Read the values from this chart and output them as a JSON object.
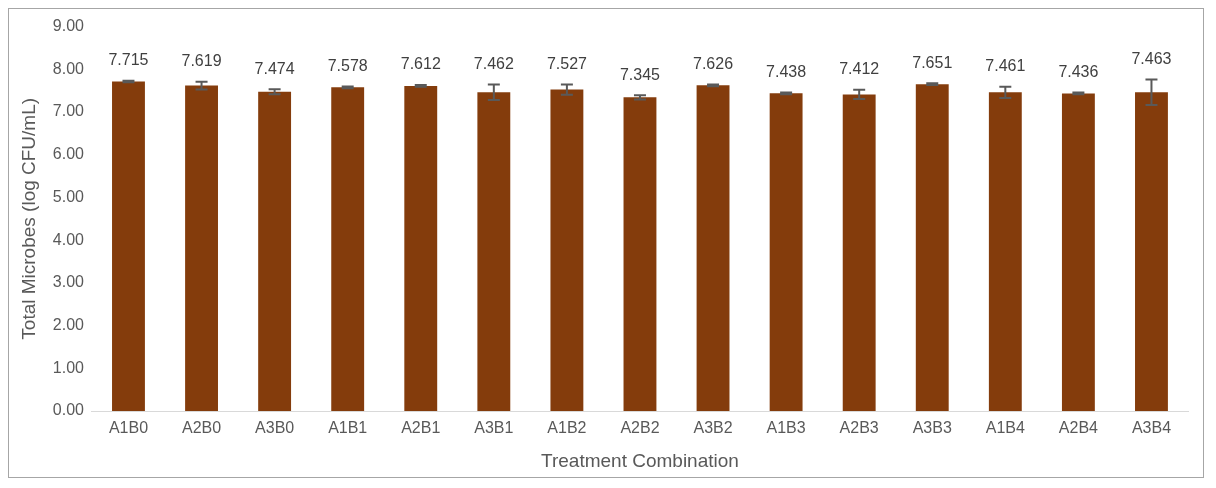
{
  "chart_data": {
    "type": "bar",
    "xlabel": "Treatment Combination",
    "ylabel": "Total Microbes (log CFU/mL)",
    "categories": [
      "A1B0",
      "A2B0",
      "A3B0",
      "A1B1",
      "A2B1",
      "A3B1",
      "A1B2",
      "A2B2",
      "A3B2",
      "A1B3",
      "A2B3",
      "A3B3",
      "A1B4",
      "A2B4",
      "A3B4"
    ],
    "values": [
      7.715,
      7.619,
      7.474,
      7.578,
      7.612,
      7.462,
      7.527,
      7.345,
      7.626,
      7.438,
      7.412,
      7.651,
      7.461,
      7.436,
      7.463
    ],
    "errors": [
      0.02,
      0.09,
      0.06,
      0.02,
      0.02,
      0.18,
      0.12,
      0.05,
      0.02,
      0.02,
      0.11,
      0.02,
      0.13,
      0.02,
      0.3
    ],
    "color": "#843c0c",
    "ylim": [
      0,
      9
    ],
    "yticks": [
      {
        "value": 0,
        "label": "0.00"
      },
      {
        "value": 1,
        "label": "1.00"
      },
      {
        "value": 2,
        "label": "2.00"
      },
      {
        "value": 3,
        "label": "3.00"
      },
      {
        "value": 4,
        "label": "4.00"
      },
      {
        "value": 5,
        "label": "5.00"
      },
      {
        "value": 6,
        "label": "6.00"
      },
      {
        "value": 7,
        "label": "7.00"
      },
      {
        "value": 8,
        "label": "8.00"
      },
      {
        "value": 9,
        "label": "9.00"
      }
    ],
    "grid": false,
    "data_labels": true
  }
}
